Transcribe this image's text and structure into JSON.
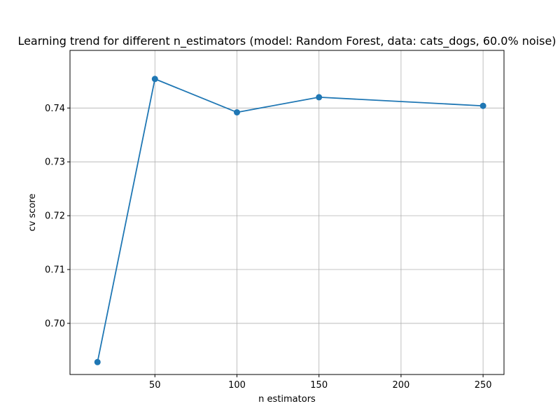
{
  "chart_data": {
    "type": "line",
    "title": "Learning trend for different n_estimators (model: Random Forest, data: cats_dogs, 60.0% noise)",
    "xlabel": "n estimators",
    "ylabel": "cv score",
    "xlim": [
      -1.75,
      262.75
    ],
    "ylim": [
      0.6905,
      0.7507
    ],
    "xticks": [
      50,
      100,
      150,
      200,
      250
    ],
    "xtick_labels": [
      "50",
      "100",
      "150",
      "200",
      "250"
    ],
    "yticks": [
      0.7,
      0.71,
      0.72,
      0.73,
      0.74
    ],
    "ytick_labels": [
      "0.70",
      "0.71",
      "0.72",
      "0.73",
      "0.74"
    ],
    "grid": true,
    "legend": false,
    "series": [
      {
        "color": "#1f77b4",
        "marker": "circle",
        "x": [
          15,
          50,
          100,
          150,
          250
        ],
        "y": [
          0.6928,
          0.7454,
          0.7392,
          0.742,
          0.7404
        ]
      }
    ]
  }
}
